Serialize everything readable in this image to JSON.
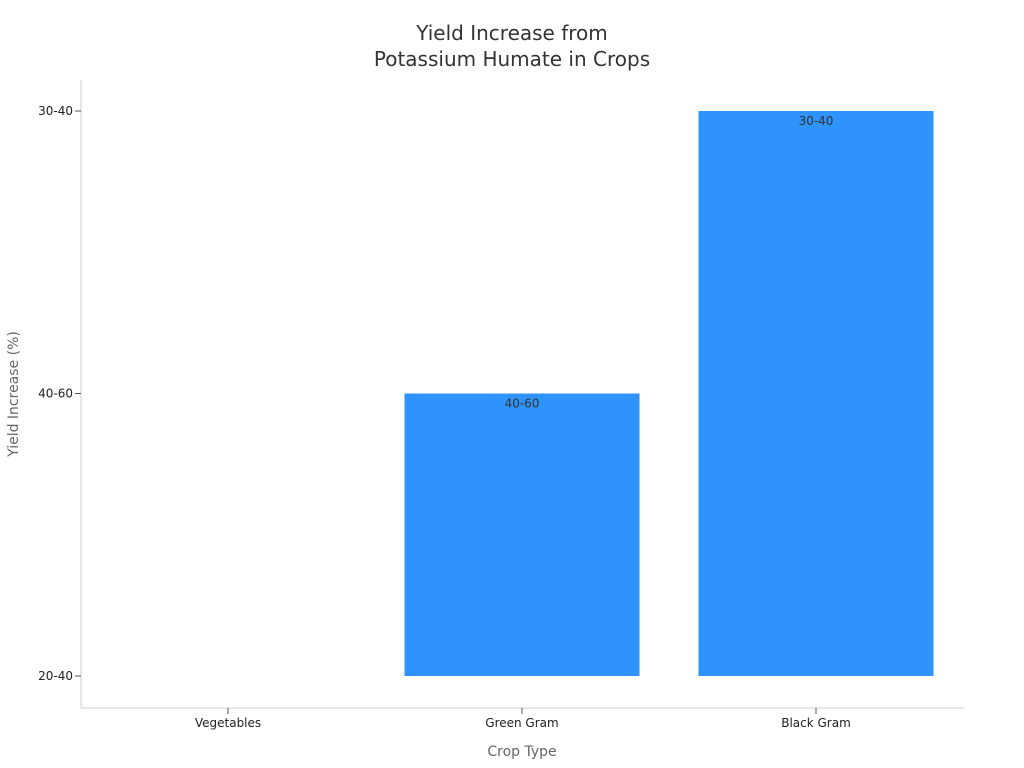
{
  "chart_data": {
    "type": "bar",
    "title_lines": [
      "Yield Increase from",
      "Potassium Humate in Crops"
    ],
    "xlabel": "Crop Type",
    "ylabel": "Yield Increase (%)",
    "categories": [
      "Vegetables",
      "Green Gram",
      "Black Gram"
    ],
    "y_categories": [
      "20-40",
      "40-60",
      "30-40"
    ],
    "values": [
      "20-40",
      "40-60",
      "30-40"
    ],
    "data_labels": [
      "",
      "40-60",
      "30-40"
    ],
    "bar_color": "#2e93fa",
    "grid": false,
    "legend": "none"
  }
}
